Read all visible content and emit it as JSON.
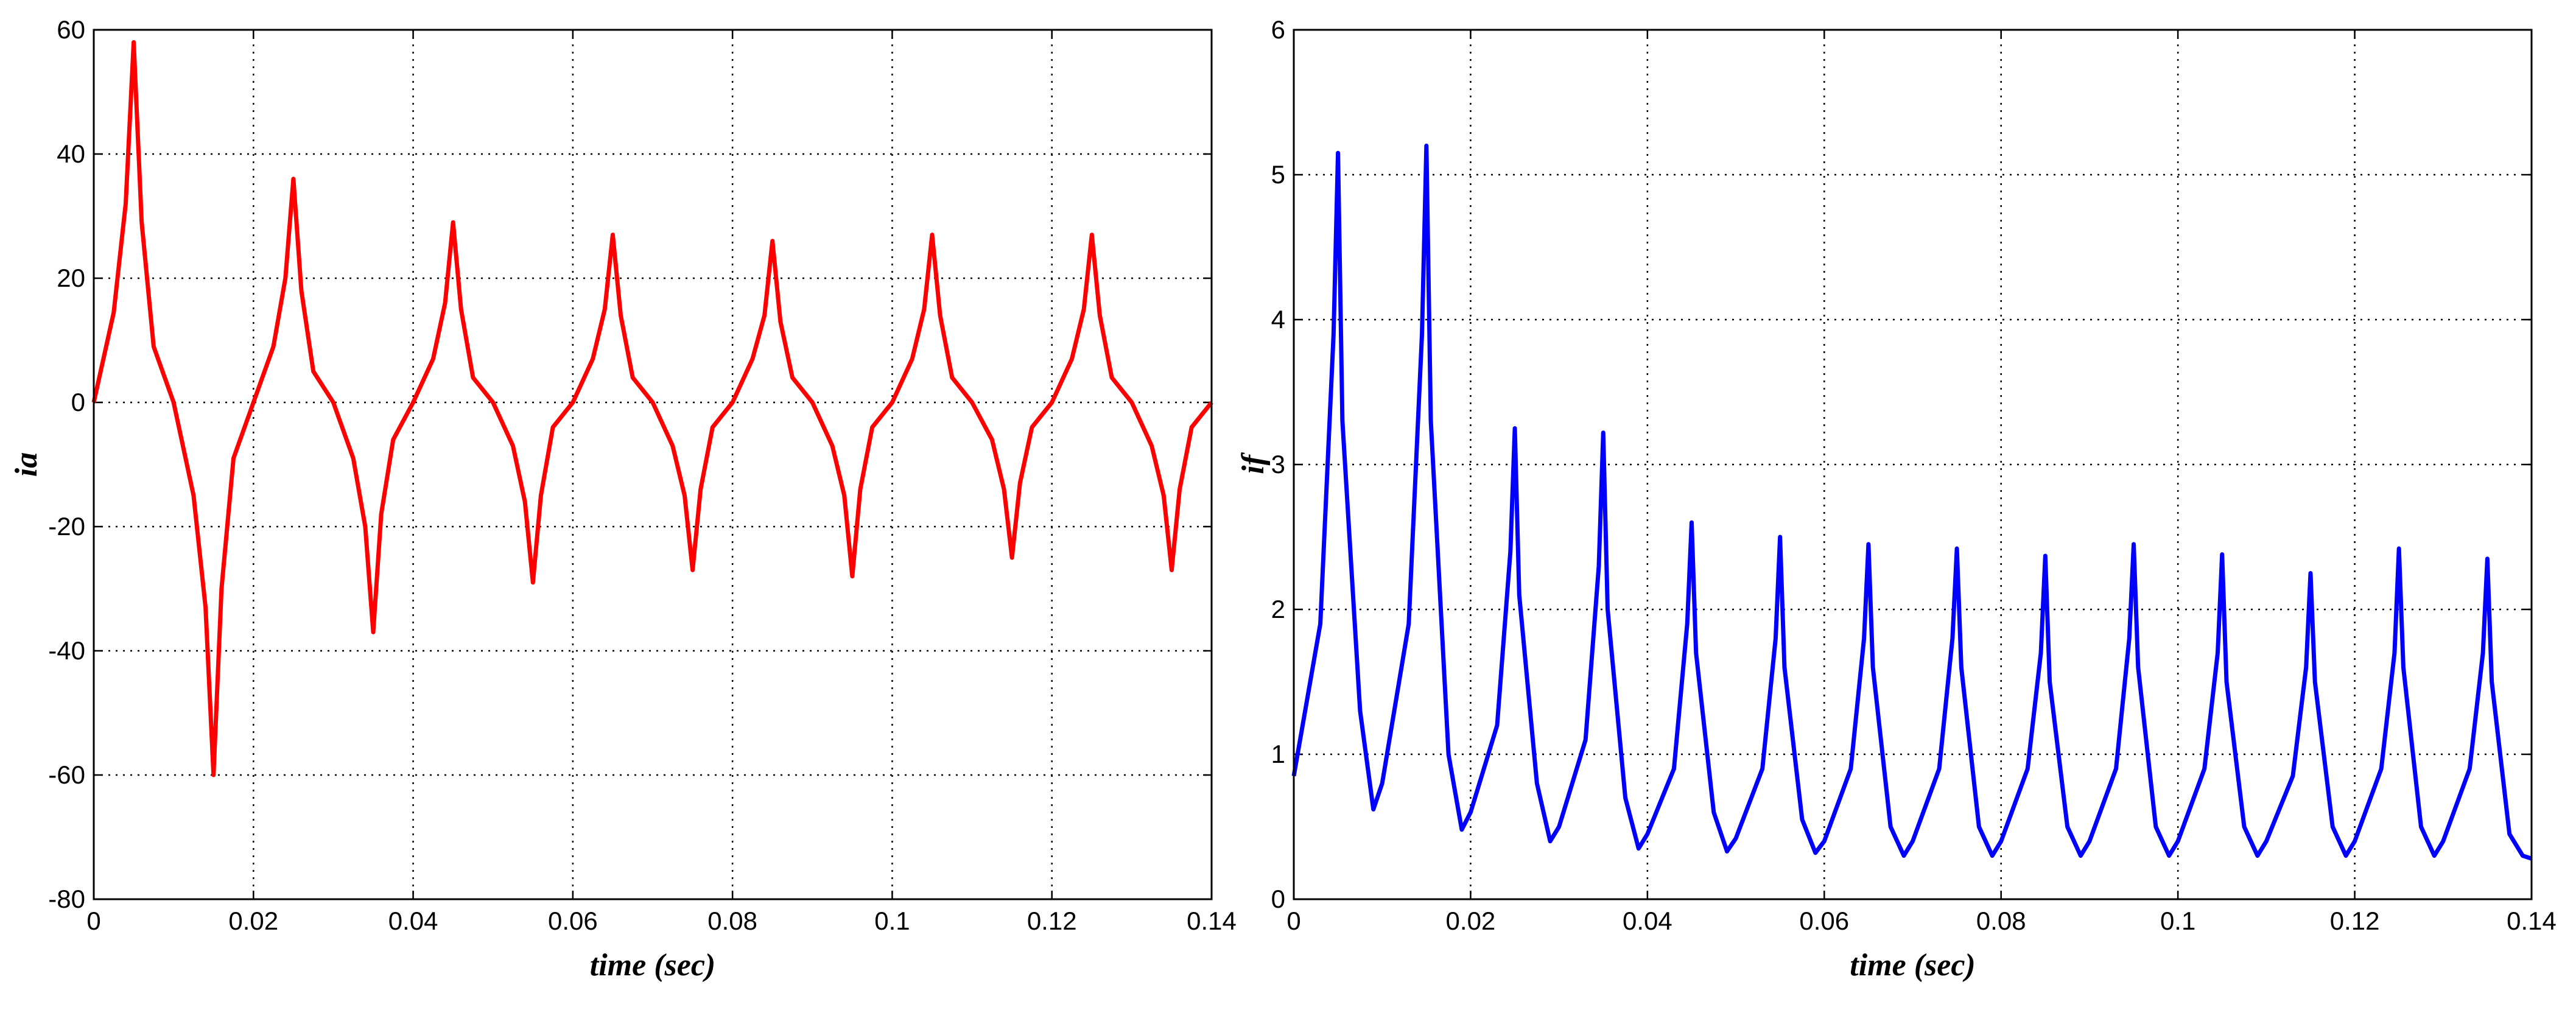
{
  "chart_data": [
    {
      "type": "line",
      "xlabel": "time (sec)",
      "ylabel": "ia",
      "color": "#ff0000",
      "grid": true,
      "xlim": [
        0,
        0.14
      ],
      "xticks": [
        0,
        0.02,
        0.04,
        0.06,
        0.08,
        0.1,
        0.12,
        0.14
      ],
      "ylim": [
        -80,
        60
      ],
      "yticks": [
        -80,
        -60,
        -40,
        -20,
        0,
        20,
        40,
        60
      ],
      "x": [
        0,
        0.0025,
        0.004,
        0.005,
        0.006,
        0.0075,
        0.01,
        0.0125,
        0.014,
        0.015,
        0.016,
        0.0175,
        0.02,
        0.0225,
        0.024,
        0.025,
        0.026,
        0.0275,
        0.03,
        0.0325,
        0.034,
        0.035,
        0.036,
        0.0375,
        0.04,
        0.0425,
        0.044,
        0.045,
        0.046,
        0.0475,
        0.05,
        0.0525,
        0.054,
        0.055,
        0.056,
        0.0575,
        0.06,
        0.0625,
        0.064,
        0.065,
        0.066,
        0.0675,
        0.07,
        0.0725,
        0.074,
        0.075,
        0.076,
        0.0775,
        0.08,
        0.0825,
        0.084,
        0.085,
        0.086,
        0.0875,
        0.09,
        0.0925,
        0.094,
        0.095,
        0.096,
        0.0975,
        0.1,
        0.1025,
        0.104,
        0.105,
        0.106,
        0.1075,
        0.11,
        0.1125,
        0.114,
        0.115,
        0.116,
        0.1175,
        0.12,
        0.1225,
        0.124,
        0.125,
        0.126,
        0.1275,
        0.13,
        0.1325,
        0.134,
        0.135,
        0.136,
        0.1375,
        0.14
      ],
      "values": [
        0,
        14.5,
        32,
        58,
        29,
        9,
        0,
        -15,
        -33,
        -60,
        -30,
        -9,
        0,
        9,
        20,
        36,
        18,
        5,
        0,
        -9,
        -20,
        -37,
        -18,
        -6,
        0,
        7,
        16,
        29,
        15,
        4,
        0,
        -7,
        -16,
        -29,
        -15,
        -4,
        0,
        7,
        15,
        27,
        14,
        4,
        0,
        -7,
        -15,
        -27,
        -14,
        -4,
        0,
        7,
        14,
        26,
        13,
        4,
        0,
        -7,
        -15,
        -28,
        -14,
        -4,
        0,
        7,
        15,
        27,
        14,
        4,
        0,
        -6,
        -14,
        -25,
        -13,
        -4,
        0,
        7,
        15,
        27,
        14,
        4,
        0,
        -7,
        -15,
        -27,
        -14,
        -4,
        0
      ]
    },
    {
      "type": "line",
      "xlabel": "time (sec)",
      "ylabel": "if",
      "color": "#0000ff",
      "grid": true,
      "xlim": [
        0,
        0.14
      ],
      "xticks": [
        0,
        0.02,
        0.04,
        0.06,
        0.08,
        0.1,
        0.12,
        0.14
      ],
      "ylim": [
        0,
        6
      ],
      "yticks": [
        0,
        1,
        2,
        3,
        4,
        5,
        6
      ],
      "x": [
        0,
        0.003,
        0.0045,
        0.005,
        0.0055,
        0.0075,
        0.009,
        0.01,
        0.013,
        0.0145,
        0.015,
        0.0155,
        0.0175,
        0.019,
        0.02,
        0.023,
        0.0245,
        0.025,
        0.0255,
        0.0275,
        0.029,
        0.03,
        0.033,
        0.0345,
        0.035,
        0.0355,
        0.0375,
        0.039,
        0.04,
        0.043,
        0.0445,
        0.045,
        0.0455,
        0.0475,
        0.049,
        0.05,
        0.053,
        0.0545,
        0.055,
        0.0555,
        0.0575,
        0.059,
        0.06,
        0.063,
        0.0645,
        0.065,
        0.0655,
        0.0675,
        0.069,
        0.07,
        0.073,
        0.0745,
        0.075,
        0.0755,
        0.0775,
        0.079,
        0.08,
        0.083,
        0.0845,
        0.085,
        0.0855,
        0.0875,
        0.089,
        0.09,
        0.093,
        0.0945,
        0.095,
        0.0955,
        0.0975,
        0.099,
        0.1,
        0.103,
        0.1045,
        0.105,
        0.1055,
        0.1075,
        0.109,
        0.11,
        0.113,
        0.1145,
        0.115,
        0.1155,
        0.1175,
        0.119,
        0.12,
        0.123,
        0.1245,
        0.125,
        0.1255,
        0.1275,
        0.129,
        0.13,
        0.133,
        0.1345,
        0.135,
        0.1355,
        0.1375,
        0.139,
        0.14
      ],
      "values": [
        0.85,
        1.9,
        3.9,
        5.15,
        3.3,
        1.3,
        0.62,
        0.8,
        1.9,
        3.9,
        5.2,
        3.3,
        1.0,
        0.48,
        0.6,
        1.2,
        2.4,
        3.25,
        2.1,
        0.8,
        0.4,
        0.5,
        1.1,
        2.3,
        3.22,
        2.0,
        0.7,
        0.35,
        0.45,
        0.9,
        1.9,
        2.6,
        1.7,
        0.6,
        0.33,
        0.42,
        0.9,
        1.8,
        2.5,
        1.6,
        0.55,
        0.32,
        0.4,
        0.9,
        1.8,
        2.45,
        1.6,
        0.5,
        0.3,
        0.4,
        0.9,
        1.8,
        2.42,
        1.6,
        0.5,
        0.3,
        0.4,
        0.9,
        1.7,
        2.37,
        1.5,
        0.5,
        0.3,
        0.4,
        0.9,
        1.8,
        2.45,
        1.6,
        0.5,
        0.3,
        0.4,
        0.9,
        1.7,
        2.38,
        1.5,
        0.5,
        0.3,
        0.4,
        0.85,
        1.6,
        2.25,
        1.5,
        0.5,
        0.3,
        0.4,
        0.9,
        1.7,
        2.42,
        1.6,
        0.5,
        0.3,
        0.4,
        0.9,
        1.7,
        2.35,
        1.5,
        0.45,
        0.3,
        0.28
      ]
    }
  ]
}
